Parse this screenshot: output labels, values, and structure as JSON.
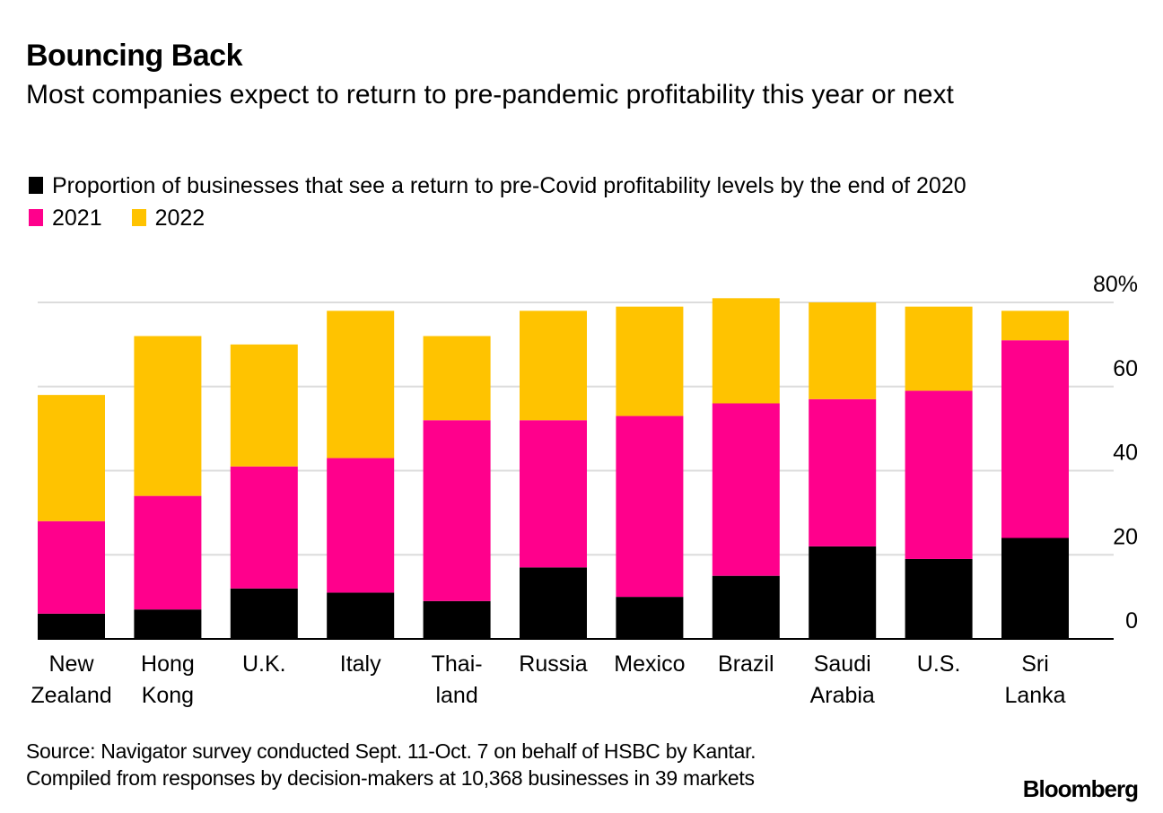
{
  "header": {
    "title": "Bouncing Back",
    "subtitle": "Most companies expect to return to pre-pandemic profitability this year or next"
  },
  "legend": {
    "items": [
      {
        "label": "Proportion of businesses that see a return to pre-Covid profitability levels by the end of 2020",
        "color": "#000000"
      },
      {
        "label": "2021",
        "color": "#ff008c"
      },
      {
        "label": "2022",
        "color": "#ffc300"
      }
    ]
  },
  "footer": {
    "source_line1": "Source: Navigator survey conducted Sept. 11-Oct. 7 on behalf of HSBC by Kantar.",
    "source_line2": "Compiled from responses by decision-makers at 10,368 businesses in 39 markets",
    "logo": "Bloomberg"
  },
  "chart_data": {
    "type": "bar",
    "stacked": true,
    "title": "Bouncing Back",
    "subtitle": "Most companies expect to return to pre-pandemic profitability this year or next",
    "xlabel": "",
    "ylabel": "",
    "ylim": [
      0,
      80
    ],
    "yticks": [
      0,
      20,
      40,
      60,
      80
    ],
    "ytick_labels": [
      "0",
      "20",
      "40",
      "60",
      "80%"
    ],
    "yaxis_side": "right",
    "grid": true,
    "legend_position": "top-left",
    "categories": [
      "New Zealand",
      "Hong Kong",
      "U.K.",
      "Italy",
      "Thailand",
      "Russia",
      "Mexico",
      "Brazil",
      "Saudi Arabia",
      "U.S.",
      "Sri Lanka"
    ],
    "category_label_lines": [
      [
        "New",
        "Zealand"
      ],
      [
        "Hong",
        "Kong"
      ],
      [
        "U.K."
      ],
      [
        "Italy"
      ],
      [
        "Thai-",
        "land"
      ],
      [
        "Russia"
      ],
      [
        "Mexico"
      ],
      [
        "Brazil"
      ],
      [
        "Saudi",
        "Arabia"
      ],
      [
        "U.S."
      ],
      [
        "Sri",
        "Lanka"
      ]
    ],
    "series": [
      {
        "name": "2020",
        "color": "#000000",
        "values": [
          6,
          7,
          12,
          11,
          9,
          17,
          10,
          15,
          22,
          19,
          24
        ]
      },
      {
        "name": "2021",
        "color": "#ff008c",
        "values": [
          22,
          27,
          29,
          32,
          43,
          35,
          43,
          41,
          35,
          40,
          47
        ]
      },
      {
        "name": "2022",
        "color": "#ffc300",
        "values": [
          30,
          38,
          29,
          35,
          20,
          26,
          26,
          25,
          23,
          20,
          7
        ]
      }
    ]
  }
}
